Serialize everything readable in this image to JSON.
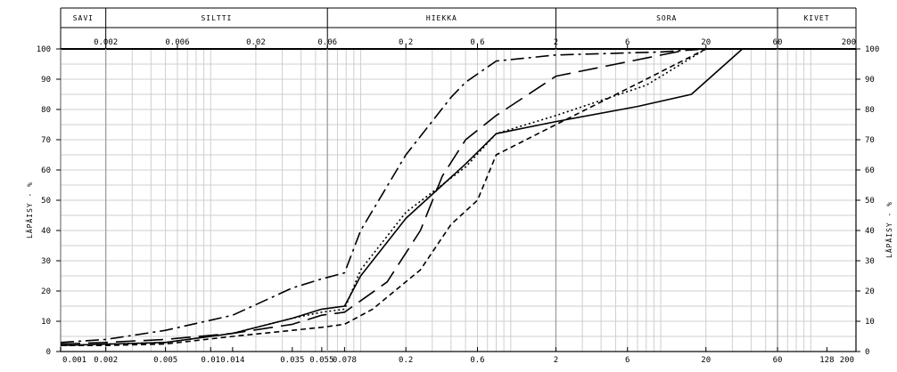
{
  "chart_data": {
    "type": "line",
    "xscale": "log",
    "xlim": [
      0.001,
      200
    ],
    "ylim": [
      0,
      100
    ],
    "ylabel": "LÄPÄISY - %",
    "grid": true,
    "soil_classes": [
      {
        "label": "SAVI",
        "from": 0.001,
        "to": 0.002
      },
      {
        "label": "SILTTI",
        "from": 0.002,
        "to": 0.06
      },
      {
        "label": "HIEKKA",
        "from": 0.06,
        "to": 2
      },
      {
        "label": "SORA",
        "from": 2,
        "to": 60
      },
      {
        "label": "KIVET",
        "from": 60,
        "to": 200
      }
    ],
    "top_ticks": [
      "0.002",
      "0.006",
      "0.02",
      "0.06",
      "0.2",
      "0.6",
      "2",
      "6",
      "20",
      "60",
      "200"
    ],
    "bottom_ticks": [
      "0.001",
      "0.002",
      "0.005",
      "0.01",
      "0.014",
      "0.035",
      "0.055",
      "0.078",
      "0.2",
      "0.6",
      "2",
      "6",
      "20",
      "60",
      "128",
      "200"
    ],
    "y_ticks": [
      "0",
      "10",
      "20",
      "30",
      "40",
      "50",
      "60",
      "70",
      "80",
      "90",
      "100"
    ],
    "series": [
      {
        "style": "solid",
        "x": [
          0.001,
          0.005,
          0.014,
          0.035,
          0.055,
          0.078,
          0.1,
          0.2,
          0.5,
          0.8,
          2,
          7,
          16,
          35
        ],
        "y": [
          2,
          3,
          6,
          11,
          14,
          15,
          25,
          44,
          62,
          72,
          76,
          81,
          85,
          100
        ]
      },
      {
        "style": "long-dash",
        "x": [
          0.001,
          0.002,
          0.005,
          0.014,
          0.035,
          0.055,
          0.078,
          0.15,
          0.25,
          0.35,
          0.5,
          0.8,
          2,
          8,
          16
        ],
        "y": [
          2.5,
          3,
          4,
          6,
          9,
          12,
          13,
          23,
          40,
          58,
          70,
          78,
          91,
          97,
          100
        ]
      },
      {
        "style": "dash-dot",
        "x": [
          0.001,
          0.002,
          0.005,
          0.014,
          0.035,
          0.055,
          0.078,
          0.1,
          0.2,
          0.4,
          0.5,
          0.8,
          2,
          10,
          20
        ],
        "y": [
          3,
          4,
          7,
          12,
          21,
          24,
          26,
          40,
          65,
          84,
          89,
          96,
          98,
          99,
          100
        ]
      },
      {
        "style": "dotted",
        "x": [
          0.001,
          0.005,
          0.014,
          0.035,
          0.055,
          0.078,
          0.1,
          0.2,
          0.5,
          0.8,
          2,
          8,
          20
        ],
        "y": [
          2,
          3,
          6,
          11,
          13,
          14,
          27,
          46,
          61,
          72,
          78,
          88,
          100
        ]
      },
      {
        "style": "short-dash",
        "x": [
          0.001,
          0.002,
          0.005,
          0.014,
          0.035,
          0.055,
          0.078,
          0.12,
          0.25,
          0.4,
          0.6,
          0.8,
          2,
          8,
          20
        ],
        "y": [
          2,
          2,
          2.5,
          5,
          7,
          8,
          9,
          14,
          27,
          42,
          50,
          65,
          75,
          90,
          100
        ]
      }
    ]
  }
}
